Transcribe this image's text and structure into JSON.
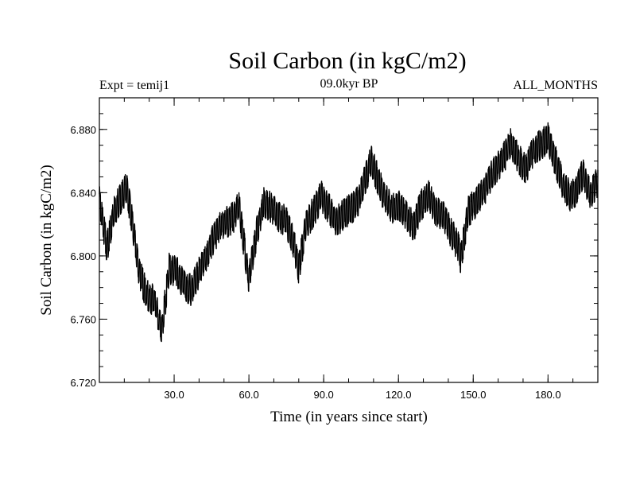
{
  "chart_data": {
    "type": "line",
    "title": "Soil Carbon (in kgC/m2)",
    "left_subtitle": "Expt = temij1",
    "center_subtitle": "09.0kyr BP",
    "right_subtitle": "ALL_MONTHS",
    "xlabel": "Time (in years since start)",
    "ylabel": "Soil Carbon (in kgC/m2)",
    "xlim": [
      0,
      200
    ],
    "ylim": [
      6.72,
      6.9
    ],
    "x_ticks": [
      30,
      60,
      90,
      120,
      150,
      180
    ],
    "x_tick_labels": [
      "30.0",
      "60.0",
      "90.0",
      "120.0",
      "150.0",
      "180.0"
    ],
    "y_ticks": [
      6.72,
      6.76,
      6.8,
      6.84,
      6.88
    ],
    "y_tick_labels": [
      "6.720",
      "6.760",
      "6.800",
      "6.840",
      "6.880"
    ],
    "series": [
      {
        "name": "Soil Carbon",
        "color": "#000000",
        "x": [
          0,
          3,
          6,
          9,
          11,
          13,
          16,
          19,
          22,
          24,
          25,
          28,
          31,
          34,
          37,
          40,
          43,
          46,
          49,
          52,
          54,
          56,
          58,
          60,
          63,
          66,
          69,
          72,
          75,
          78,
          80,
          83,
          86,
          89,
          92,
          95,
          98,
          101,
          104,
          107,
          109,
          111,
          114,
          117,
          120,
          123,
          126,
          129,
          132,
          135,
          138,
          141,
          144,
          145,
          148,
          151,
          154,
          157,
          160,
          163,
          165,
          168,
          171,
          174,
          177,
          180,
          183,
          186,
          189,
          191,
          194,
          197,
          200
        ],
        "y": [
          6.835,
          6.805,
          6.828,
          6.838,
          6.843,
          6.823,
          6.79,
          6.775,
          6.772,
          6.758,
          6.752,
          6.792,
          6.79,
          6.782,
          6.778,
          6.79,
          6.8,
          6.812,
          6.82,
          6.822,
          6.825,
          6.832,
          6.808,
          6.785,
          6.814,
          6.835,
          6.83,
          6.825,
          6.822,
          6.808,
          6.792,
          6.82,
          6.828,
          6.838,
          6.83,
          6.822,
          6.826,
          6.83,
          6.835,
          6.85,
          6.86,
          6.852,
          6.838,
          6.83,
          6.832,
          6.826,
          6.818,
          6.832,
          6.838,
          6.828,
          6.825,
          6.815,
          6.806,
          6.798,
          6.828,
          6.834,
          6.84,
          6.85,
          6.857,
          6.864,
          6.872,
          6.862,
          6.855,
          6.866,
          6.87,
          6.875,
          6.86,
          6.845,
          6.838,
          6.84,
          6.852,
          6.838,
          6.848
        ]
      }
    ]
  }
}
